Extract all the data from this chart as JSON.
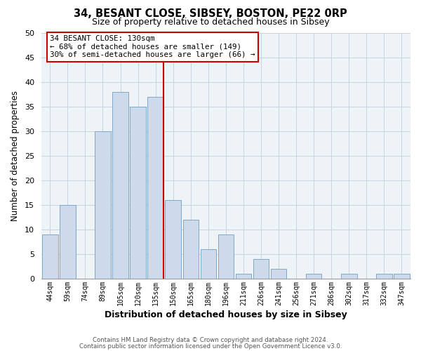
{
  "title": "34, BESANT CLOSE, SIBSEY, BOSTON, PE22 0RP",
  "subtitle": "Size of property relative to detached houses in Sibsey",
  "xlabel": "Distribution of detached houses by size in Sibsey",
  "ylabel": "Number of detached properties",
  "bin_labels": [
    "44sqm",
    "59sqm",
    "74sqm",
    "89sqm",
    "105sqm",
    "120sqm",
    "135sqm",
    "150sqm",
    "165sqm",
    "180sqm",
    "196sqm",
    "211sqm",
    "226sqm",
    "241sqm",
    "256sqm",
    "271sqm",
    "286sqm",
    "302sqm",
    "317sqm",
    "332sqm",
    "347sqm"
  ],
  "bar_values": [
    9,
    15,
    0,
    30,
    38,
    35,
    37,
    16,
    12,
    6,
    9,
    1,
    4,
    2,
    0,
    1,
    0,
    1,
    0,
    1,
    1
  ],
  "bar_color": "#ccdaeb",
  "bar_edge_color": "#7fa8c8",
  "vline_index": 6,
  "vline_color": "#cc0000",
  "ylim": [
    0,
    50
  ],
  "yticks": [
    0,
    5,
    10,
    15,
    20,
    25,
    30,
    35,
    40,
    45,
    50
  ],
  "annotation_title": "34 BESANT CLOSE: 130sqm",
  "annotation_line1": "← 68% of detached houses are smaller (149)",
  "annotation_line2": "30% of semi-detached houses are larger (66) →",
  "annotation_box_facecolor": "#ffffff",
  "annotation_box_edgecolor": "#cc0000",
  "footer_line1": "Contains HM Land Registry data © Crown copyright and database right 2024.",
  "footer_line2": "Contains public sector information licensed under the Open Government Licence v3.0.",
  "grid_color": "#c8d4e0",
  "background_color": "#ffffff",
  "plot_bg_color": "#eef3f8"
}
